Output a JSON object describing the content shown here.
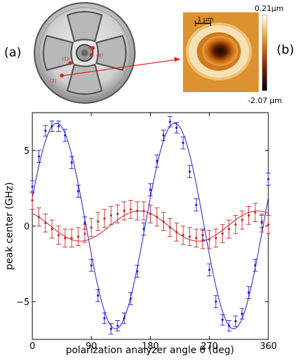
{
  "panel_labels": {
    "a": "(a)",
    "b": "(b)"
  },
  "device_markers": [
    "(1)",
    "(2)",
    "(3)",
    "(4)"
  ],
  "afm": {
    "scale_bar": "1 µm",
    "colorbar_max": "0.21µm",
    "colorbar_min": "-2.07 µm"
  },
  "colors": {
    "series_blue": "#1a1adc",
    "series_red": "#d42020",
    "marker_red": "#e02020"
  },
  "chart_data": {
    "type": "scatter",
    "xlabel": "polarization analyzer angle θ (deg)",
    "ylabel": "peak center (GHz)",
    "xlim": [
      0,
      360
    ],
    "ylim": [
      -7.5,
      7.5
    ],
    "xticks": [
      0,
      90,
      180,
      270,
      360
    ],
    "yticks": [
      -5,
      0,
      5
    ],
    "grid": false,
    "series": [
      {
        "color": "#1a1adc",
        "fit": {
          "amplitude": 6.8,
          "period_deg": 180,
          "peak_deg": 37
        },
        "points": [
          {
            "x": 0,
            "y": 2.6,
            "err": 0.4
          },
          {
            "x": 10,
            "y": 4.6,
            "err": 0.4
          },
          {
            "x": 20,
            "y": 6.3,
            "err": 0.35
          },
          {
            "x": 30,
            "y": 6.6,
            "err": 0.35
          },
          {
            "x": 40,
            "y": 6.6,
            "err": 0.35
          },
          {
            "x": 50,
            "y": 6.0,
            "err": 0.4
          },
          {
            "x": 60,
            "y": 4.2,
            "err": 0.4
          },
          {
            "x": 70,
            "y": 2.3,
            "err": 0.4
          },
          {
            "x": 80,
            "y": 0.2,
            "err": 0.4
          },
          {
            "x": 90,
            "y": -2.6,
            "err": 0.4
          },
          {
            "x": 100,
            "y": -4.6,
            "err": 0.4
          },
          {
            "x": 110,
            "y": -6.1,
            "err": 0.35
          },
          {
            "x": 120,
            "y": -6.8,
            "err": 0.35
          },
          {
            "x": 130,
            "y": -6.6,
            "err": 0.35
          },
          {
            "x": 140,
            "y": -6.1,
            "err": 0.35
          },
          {
            "x": 150,
            "y": -4.8,
            "err": 0.4
          },
          {
            "x": 160,
            "y": -3.0,
            "err": 0.4
          },
          {
            "x": 170,
            "y": -0.2,
            "err": 0.4
          },
          {
            "x": 180,
            "y": 2.4,
            "err": 0.4
          },
          {
            "x": 190,
            "y": 4.3,
            "err": 0.4
          },
          {
            "x": 200,
            "y": 6.0,
            "err": 0.35
          },
          {
            "x": 210,
            "y": 6.9,
            "err": 0.35
          },
          {
            "x": 220,
            "y": 6.5,
            "err": 0.35
          },
          {
            "x": 230,
            "y": 5.5,
            "err": 0.4
          },
          {
            "x": 240,
            "y": 3.6,
            "err": 0.4
          },
          {
            "x": 250,
            "y": 1.4,
            "err": 0.4
          },
          {
            "x": 260,
            "y": -0.6,
            "err": 0.4
          },
          {
            "x": 270,
            "y": -2.9,
            "err": 0.4
          },
          {
            "x": 280,
            "y": -5.0,
            "err": 0.4
          },
          {
            "x": 290,
            "y": -6.2,
            "err": 0.35
          },
          {
            "x": 300,
            "y": -6.6,
            "err": 0.35
          },
          {
            "x": 310,
            "y": -6.3,
            "err": 0.35
          },
          {
            "x": 320,
            "y": -5.8,
            "err": 0.35
          },
          {
            "x": 330,
            "y": -4.4,
            "err": 0.4
          },
          {
            "x": 340,
            "y": -2.6,
            "err": 0.4
          },
          {
            "x": 350,
            "y": 0.3,
            "err": 0.4
          },
          {
            "x": 360,
            "y": 3.1,
            "err": 0.4
          }
        ]
      },
      {
        "color": "#d42020",
        "fit": {
          "amplitude": 1.0,
          "period_deg": 180,
          "peak_deg": 163
        },
        "points": [
          {
            "x": 0,
            "y": 1.7,
            "err": 0.6
          },
          {
            "x": 10,
            "y": 0.6,
            "err": 0.6
          },
          {
            "x": 20,
            "y": 0.2,
            "err": 0.6
          },
          {
            "x": 30,
            "y": -0.2,
            "err": 0.6
          },
          {
            "x": 40,
            "y": -0.6,
            "err": 0.6
          },
          {
            "x": 50,
            "y": -0.8,
            "err": 0.6
          },
          {
            "x": 60,
            "y": -0.8,
            "err": 0.6
          },
          {
            "x": 70,
            "y": -0.7,
            "err": 0.6
          },
          {
            "x": 80,
            "y": -0.5,
            "err": 0.6
          },
          {
            "x": 90,
            "y": -0.1,
            "err": 0.6
          },
          {
            "x": 100,
            "y": 0.3,
            "err": 0.6
          },
          {
            "x": 110,
            "y": 0.5,
            "err": 0.6
          },
          {
            "x": 120,
            "y": 0.7,
            "err": 0.6
          },
          {
            "x": 130,
            "y": 0.8,
            "err": 0.6
          },
          {
            "x": 140,
            "y": 1.0,
            "err": 0.6
          },
          {
            "x": 150,
            "y": 1.1,
            "err": 0.6
          },
          {
            "x": 160,
            "y": 1.0,
            "err": 0.6
          },
          {
            "x": 170,
            "y": 1.0,
            "err": 0.6
          },
          {
            "x": 180,
            "y": 0.8,
            "err": 0.6
          },
          {
            "x": 190,
            "y": 0.6,
            "err": 0.6
          },
          {
            "x": 200,
            "y": 0.3,
            "err": 0.6
          },
          {
            "x": 210,
            "y": -0.1,
            "err": 0.6
          },
          {
            "x": 220,
            "y": -0.4,
            "err": 0.6
          },
          {
            "x": 230,
            "y": -0.6,
            "err": 0.6
          },
          {
            "x": 240,
            "y": -0.7,
            "err": 0.6
          },
          {
            "x": 250,
            "y": -0.8,
            "err": 0.6
          },
          {
            "x": 260,
            "y": -0.9,
            "err": 0.6
          },
          {
            "x": 270,
            "y": -0.9,
            "err": 0.6
          },
          {
            "x": 280,
            "y": -0.8,
            "err": 0.6
          },
          {
            "x": 290,
            "y": -0.5,
            "err": 0.6
          },
          {
            "x": 300,
            "y": -0.2,
            "err": 0.6
          },
          {
            "x": 310,
            "y": 0.1,
            "err": 0.6
          },
          {
            "x": 320,
            "y": 0.4,
            "err": 0.6
          },
          {
            "x": 330,
            "y": 0.7,
            "err": 0.6
          },
          {
            "x": 340,
            "y": 0.9,
            "err": 0.6
          },
          {
            "x": 350,
            "y": 0.2,
            "err": 0.6
          },
          {
            "x": 360,
            "y": 0.1,
            "err": 0.6
          }
        ]
      }
    ]
  }
}
